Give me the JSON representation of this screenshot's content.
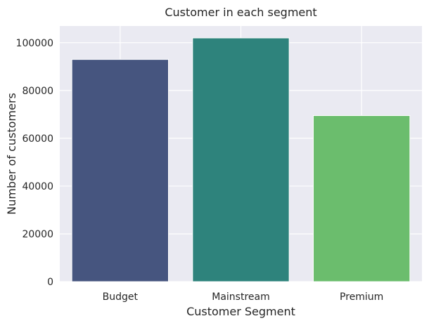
{
  "chart_data": {
    "type": "bar",
    "title": "Customer in each segment",
    "xlabel": "Customer Segment",
    "ylabel": "Number of customers",
    "categories": [
      "Budget",
      "Mainstream",
      "Premium"
    ],
    "values": [
      93000,
      102000,
      69500
    ],
    "colors": [
      "#46557f",
      "#2e837c",
      "#6bbd6d"
    ],
    "ylim": [
      0,
      107000
    ],
    "yticks": [
      0,
      20000,
      40000,
      60000,
      80000,
      100000
    ],
    "grid": true,
    "background": "#eaeaf2",
    "grid_color": "#ffffff"
  }
}
